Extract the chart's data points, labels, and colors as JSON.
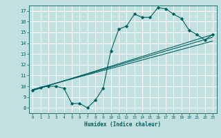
{
  "xlabel": "Humidex (Indice chaleur)",
  "bg_color": "#c2e0e0",
  "grid_color": "#ffffff",
  "line_color": "#006060",
  "xlim": [
    -0.5,
    23.5
  ],
  "ylim": [
    7.5,
    17.5
  ],
  "xticks": [
    0,
    1,
    2,
    3,
    4,
    5,
    6,
    7,
    8,
    9,
    10,
    11,
    12,
    13,
    14,
    15,
    16,
    17,
    18,
    19,
    20,
    21,
    22,
    23
  ],
  "yticks": [
    8,
    9,
    10,
    11,
    12,
    13,
    14,
    15,
    16,
    17
  ],
  "line1_x": [
    0,
    1,
    2,
    3,
    4,
    5,
    6,
    7,
    8,
    9,
    10,
    11,
    12,
    13,
    14,
    15,
    16,
    17,
    18,
    19,
    20,
    21,
    22,
    23
  ],
  "line1_y": [
    9.6,
    9.9,
    10.0,
    10.0,
    9.8,
    8.4,
    8.4,
    8.0,
    8.7,
    9.8,
    13.3,
    15.3,
    15.6,
    16.7,
    16.4,
    16.4,
    17.3,
    17.2,
    16.7,
    16.3,
    15.2,
    14.8,
    14.3,
    14.8
  ],
  "line2_x": [
    0,
    23
  ],
  "line2_y": [
    9.6,
    14.8
  ],
  "line3_x": [
    0,
    23
  ],
  "line3_y": [
    9.65,
    14.55
  ],
  "line4_x": [
    0,
    23
  ],
  "line4_y": [
    9.7,
    14.2
  ]
}
